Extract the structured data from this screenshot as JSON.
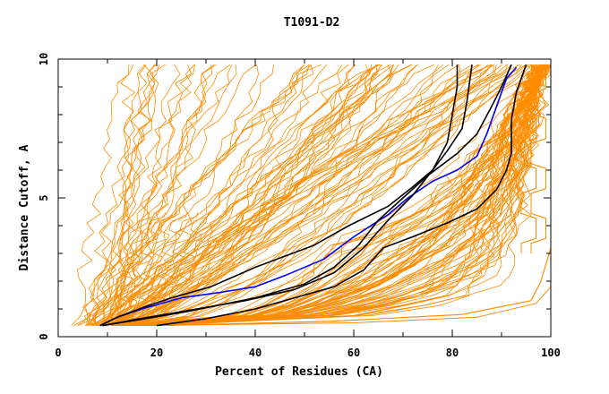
{
  "chart_data": {
    "type": "line",
    "title": "T1091-D2",
    "xlabel": "Percent of Residues (CA)",
    "ylabel": "Distance Cutoff, A",
    "xlim": [
      0,
      100
    ],
    "ylim": [
      0,
      10
    ],
    "xticks": [
      0,
      20,
      40,
      60,
      80,
      100
    ],
    "yticks": [
      0,
      5,
      10
    ],
    "grid": false,
    "legend": "none",
    "colors": {
      "bundle": "#ff8c00",
      "highlight_blue": "#0000ff",
      "highlight_black": "#000000",
      "axes": "#000000",
      "background": "#ffffff"
    },
    "series": [
      {
        "color": "#0000ff",
        "points": [
          [
            8.5,
            0.4
          ],
          [
            12,
            0.7
          ],
          [
            17,
            1.0
          ],
          [
            25,
            1.4
          ],
          [
            33,
            1.6
          ],
          [
            40,
            1.8
          ],
          [
            46,
            2.2
          ],
          [
            54,
            2.8
          ],
          [
            60,
            3.6
          ],
          [
            67,
            4.4
          ],
          [
            71,
            5.0
          ],
          [
            76,
            5.6
          ],
          [
            81,
            6.0
          ],
          [
            85,
            6.5
          ],
          [
            87,
            7.3
          ],
          [
            89,
            8.3
          ],
          [
            91,
            9.3
          ],
          [
            93,
            9.7
          ]
        ]
      },
      {
        "color": "#000000",
        "points": [
          [
            8.5,
            0.4
          ],
          [
            12,
            0.7
          ],
          [
            18,
            1.1
          ],
          [
            23,
            1.4
          ],
          [
            31,
            1.8
          ],
          [
            40,
            2.5
          ],
          [
            52,
            3.3
          ],
          [
            59,
            4.0
          ],
          [
            67,
            4.7
          ],
          [
            72,
            5.4
          ],
          [
            76,
            6.0
          ],
          [
            79,
            7.0
          ],
          [
            80,
            8.0
          ],
          [
            81,
            9.0
          ],
          [
            81,
            9.8
          ]
        ]
      },
      {
        "color": "#000000",
        "points": [
          [
            9,
            0.4
          ],
          [
            15,
            0.6
          ],
          [
            25,
            0.9
          ],
          [
            38,
            1.3
          ],
          [
            48,
            1.7
          ],
          [
            56,
            2.3
          ],
          [
            62,
            3.2
          ],
          [
            67,
            4.2
          ],
          [
            72,
            5.1
          ],
          [
            76,
            6.0
          ],
          [
            79,
            6.7
          ],
          [
            82,
            7.5
          ],
          [
            83,
            8.5
          ],
          [
            84,
            9.8
          ]
        ]
      },
      {
        "color": "#000000",
        "points": [
          [
            20,
            0.4
          ],
          [
            30,
            0.65
          ],
          [
            40,
            1.0
          ],
          [
            48,
            1.4
          ],
          [
            56,
            1.8
          ],
          [
            62,
            2.4
          ],
          [
            66,
            3.2
          ],
          [
            72,
            3.6
          ],
          [
            79,
            4.1
          ],
          [
            85,
            4.6
          ],
          [
            89,
            5.3
          ],
          [
            91,
            6.0
          ],
          [
            92,
            6.6
          ],
          [
            92,
            7.8
          ],
          [
            93,
            8.8
          ],
          [
            95,
            9.8
          ]
        ]
      },
      {
        "color": "#000000",
        "points": [
          [
            9,
            0.4
          ],
          [
            16,
            0.6
          ],
          [
            26,
            0.9
          ],
          [
            40,
            1.4
          ],
          [
            50,
            1.9
          ],
          [
            56,
            2.5
          ],
          [
            61,
            3.3
          ],
          [
            65,
            4.2
          ],
          [
            70,
            5.0
          ],
          [
            75,
            5.8
          ],
          [
            81,
            6.6
          ],
          [
            85,
            7.3
          ],
          [
            88,
            8.3
          ],
          [
            90,
            9.0
          ],
          [
            92,
            9.8
          ]
        ]
      }
    ]
  }
}
